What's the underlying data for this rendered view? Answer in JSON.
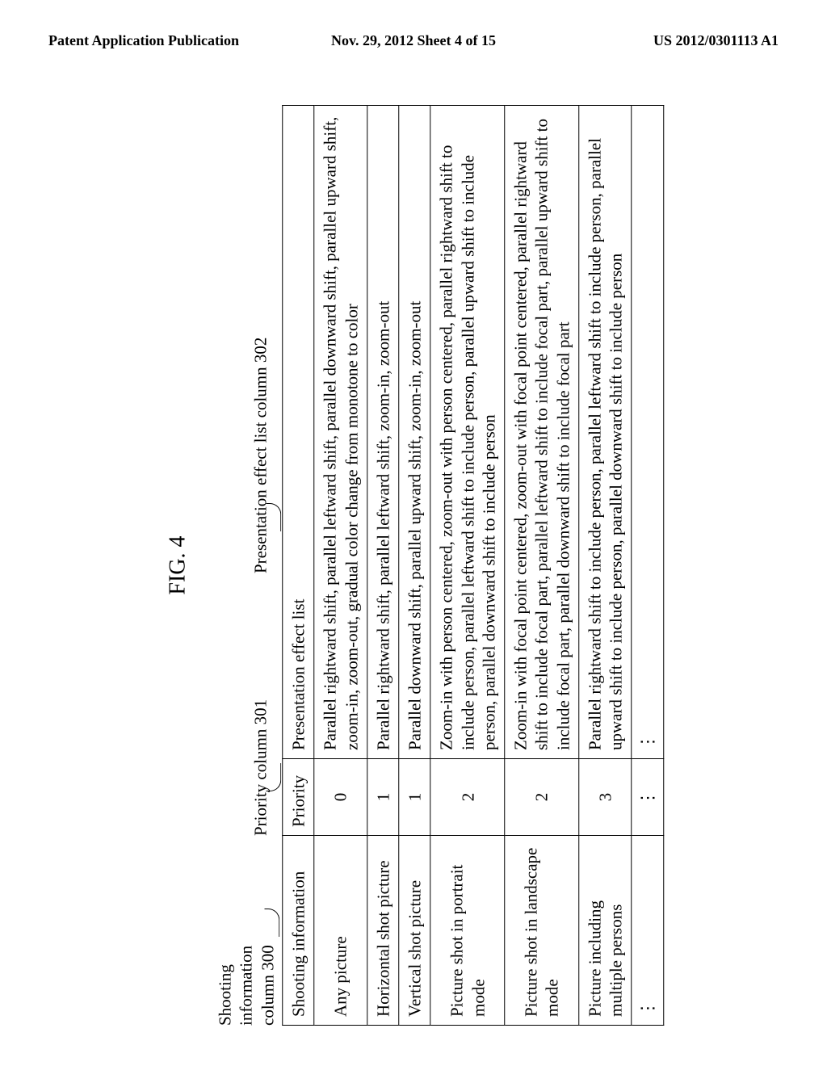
{
  "header": {
    "left": "Patent Application Publication",
    "center": "Nov. 29, 2012  Sheet 4 of 15",
    "right": "US 2012/0301113 A1"
  },
  "figure": {
    "caption": "FIG. 4",
    "labels": {
      "col300": "Shooting\ninformation\ncolumn 300",
      "col301": "Priority column 301",
      "col302": "Presentation effect list column 302"
    },
    "table": {
      "head": {
        "info": "Shooting information",
        "priority": "Priority",
        "effect": "Presentation effect list"
      },
      "rows": [
        {
          "info": "Any picture",
          "priority": "0",
          "effect": "Parallel rightward shift, parallel leftward shift, parallel downward shift, parallel upward shift, zoom-in, zoom-out, gradual color change from monotone to color"
        },
        {
          "info": "Horizontal shot picture",
          "priority": "1",
          "effect": "Parallel rightward shift, parallel leftward shift, zoom-in, zoom-out"
        },
        {
          "info": "Vertical shot picture",
          "priority": "1",
          "effect": "Parallel downward shift, parallel upward shift, zoom-in, zoom-out"
        },
        {
          "info": "Picture shot in portrait mode",
          "priority": "2",
          "effect": "Zoom-in with person centered, zoom-out with person centered, parallel rightward shift to include person, parallel leftward shift to include person, parallel upward shift to include person, parallel downward shift to include person"
        },
        {
          "info": "Picture shot in landscape mode",
          "priority": "2",
          "effect": "Zoom-in with focal point centered, zoom-out with focal point centered, parallel rightward shift to include focal part, parallel leftward shift to include focal part, parallel upward shift to include focal part, parallel downward shift to include focal part"
        },
        {
          "info": "Picture including multiple persons",
          "priority": "3",
          "effect": "Parallel rightward shift to include person, parallel leftward shift to include person, parallel upward shift to include person, parallel downward shift to include person"
        },
        {
          "info": "⋮",
          "priority": "⋮",
          "effect": "⋮"
        }
      ]
    }
  }
}
